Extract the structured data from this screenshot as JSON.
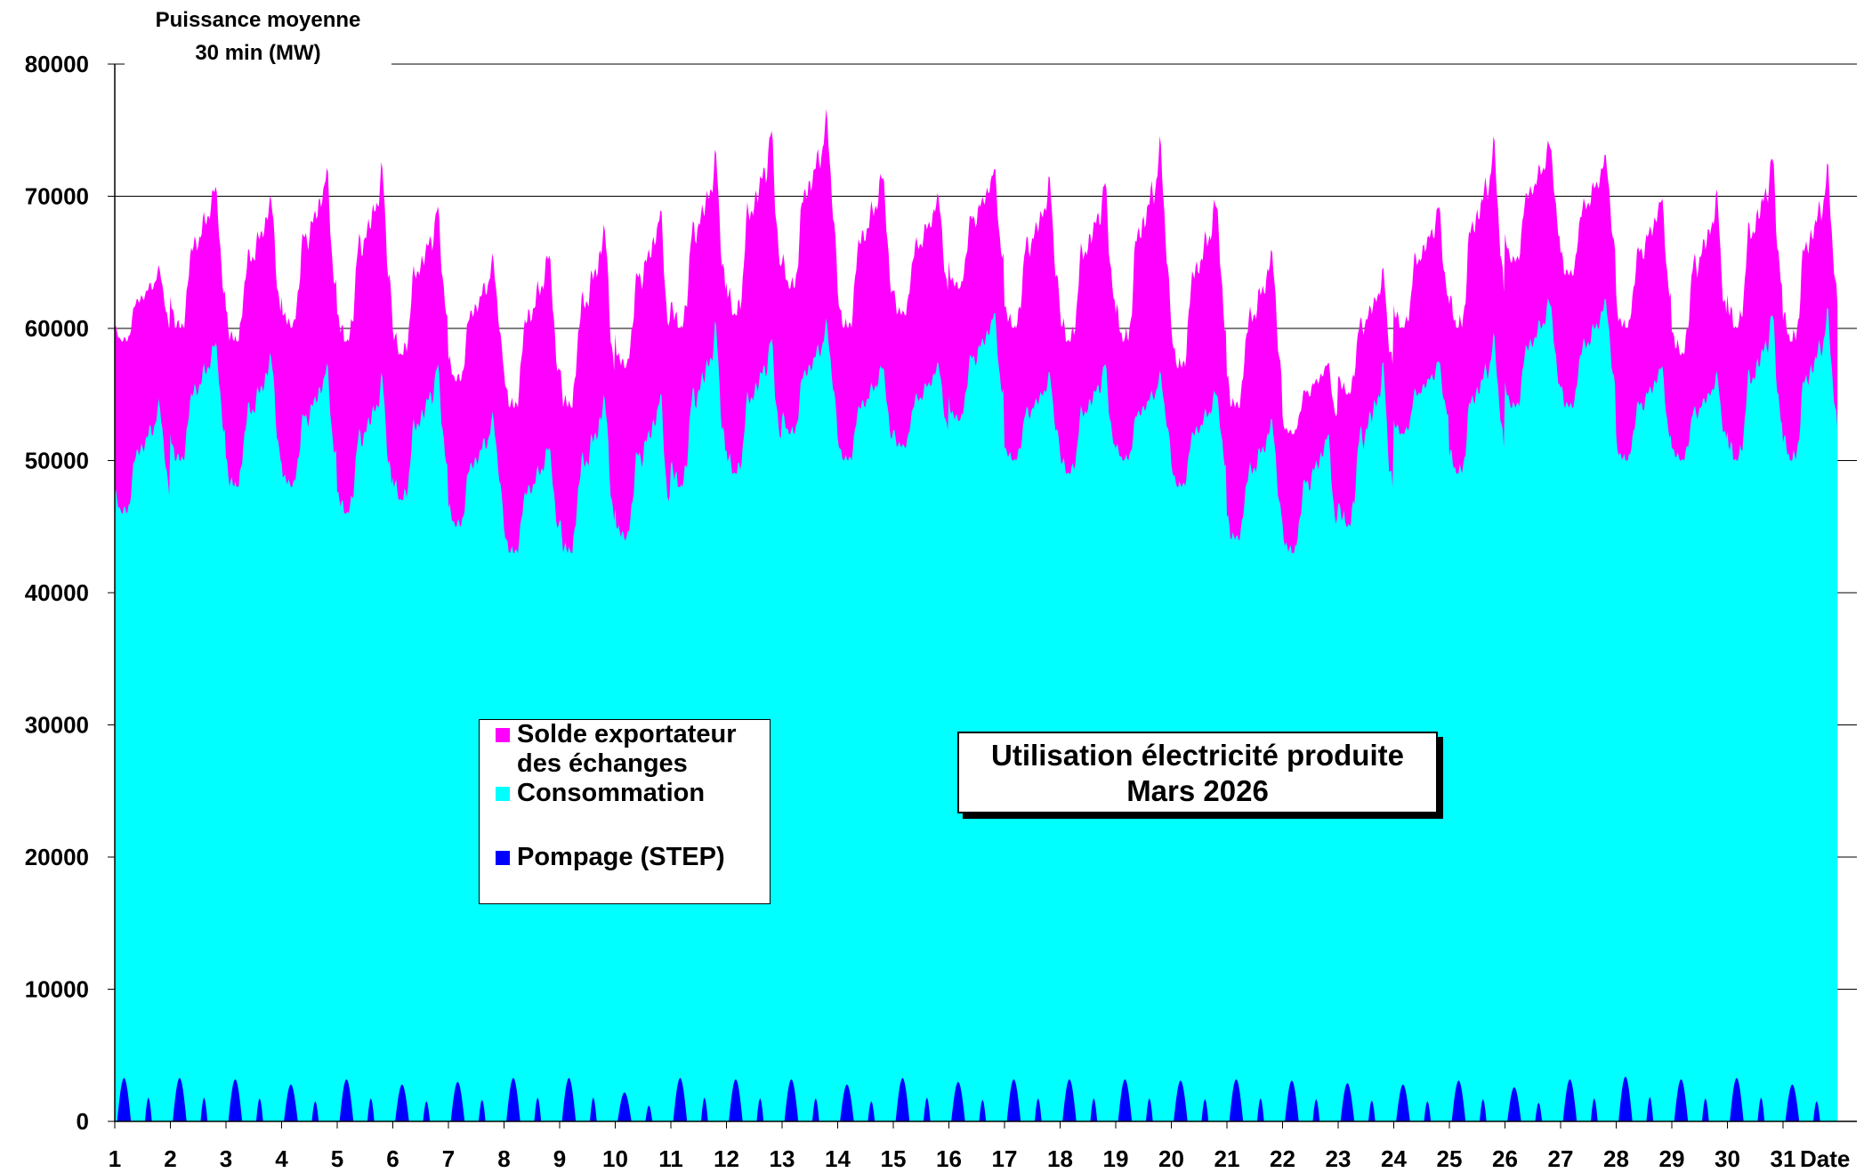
{
  "chart_data": {
    "type": "area",
    "stacked": true,
    "title": "Utilisation électricité produite",
    "subtitle": "Mars 2026",
    "ylabel_line1": "Puissance moyenne",
    "ylabel_line2": "30 min (MW)",
    "xlabel": "Date",
    "ylim": [
      0,
      80000
    ],
    "y_ticks": [
      0,
      10000,
      20000,
      30000,
      40000,
      50000,
      60000,
      70000,
      80000
    ],
    "y_tick_labels": [
      "0",
      "10000",
      "20000",
      "30000",
      "40000",
      "50000",
      "60000",
      "70000",
      "80000"
    ],
    "x_ticks": [
      "1",
      "2",
      "3",
      "4",
      "5",
      "6",
      "7",
      "8",
      "9",
      "10",
      "11",
      "12",
      "13",
      "14",
      "15",
      "16",
      "17",
      "18",
      "19",
      "20",
      "21",
      "22",
      "23",
      "24",
      "25",
      "26",
      "27",
      "28",
      "29",
      "30",
      "31"
    ],
    "grid": "horizontal",
    "legend_position": "center-left",
    "series": [
      {
        "name": "Consommation",
        "color": "#00FFFF",
        "daily_min": [
          46000,
          50000,
          48000,
          48000,
          46000,
          47000,
          45000,
          43000,
          43000,
          44000,
          48000,
          49000,
          52000,
          50000,
          51000,
          53000,
          50000,
          49000,
          50000,
          48000,
          44000,
          43000,
          45000,
          52000,
          49000,
          54000,
          54000,
          50000,
          50000,
          50000,
          50000
        ],
        "daily_max": [
          55000,
          60000,
          59000,
          58000,
          57000,
          58000,
          54000,
          52000,
          56000,
          56000,
          61000,
          60000,
          61000,
          58000,
          58000,
          62000,
          57000,
          58000,
          57000,
          56000,
          54000,
          53000,
          58000,
          58000,
          60000,
          63000,
          63000,
          58000,
          57000,
          62000,
          62000
        ]
      },
      {
        "name": "Solde exportateur des échanges",
        "color": "#FF00FF",
        "daily_min": [
          59000,
          60000,
          59000,
          60000,
          59000,
          58000,
          56000,
          54000,
          54000,
          57000,
          60000,
          61000,
          63000,
          60000,
          61000,
          63000,
          60000,
          59000,
          59000,
          57000,
          54000,
          52000,
          55000,
          60000,
          60000,
          65000,
          64000,
          60000,
          58000,
          60000,
          59000
        ],
        "daily_max": [
          65000,
          72000,
          71000,
          73000,
          73000,
          70000,
          66000,
          67000,
          69000,
          70000,
          74000,
          76000,
          77000,
          73000,
          71000,
          73000,
          72000,
          72000,
          75000,
          71000,
          67000,
          58000,
          65000,
          70000,
          75000,
          75000,
          74000,
          71000,
          71000,
          74000,
          73000
        ]
      },
      {
        "name": "Pompage (STEP)",
        "color": "#0000FF",
        "daily_peak": [
          3300,
          3300,
          3200,
          2800,
          3200,
          2800,
          3000,
          3300,
          3300,
          2200,
          3300,
          3200,
          3200,
          2800,
          3300,
          3000,
          3200,
          3200,
          3200,
          3100,
          3200,
          3100,
          2900,
          2800,
          3100,
          2600,
          3200,
          3400,
          3200,
          3300,
          2800
        ]
      }
    ]
  },
  "legend": {
    "items": [
      {
        "label_line1": "Solde exportateur",
        "label_line2": "des échanges",
        "color": "#FF00FF"
      },
      {
        "label_line1": "Consommation",
        "color": "#00FFFF"
      },
      {
        "label_line1": "Pompage (STEP)",
        "color": "#0000FF"
      }
    ]
  }
}
